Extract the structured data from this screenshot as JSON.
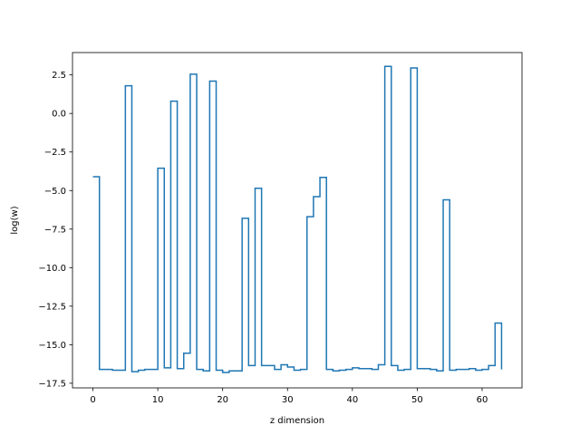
{
  "chart_data": {
    "type": "line",
    "drawstyle": "steps-post",
    "title": "",
    "xlabel": "z dimension",
    "ylabel": "log(w)",
    "xlim": [
      -3.15,
      66.15
    ],
    "ylim": [
      -17.8,
      3.95
    ],
    "xticks": [
      0,
      10,
      20,
      30,
      40,
      50,
      60
    ],
    "xtick_labels": [
      "0",
      "10",
      "20",
      "30",
      "40",
      "50",
      "60"
    ],
    "yticks": [
      -17.5,
      -15.0,
      -12.5,
      -10.0,
      -7.5,
      -5.0,
      -2.5,
      0.0,
      2.5
    ],
    "ytick_labels": [
      "−17.5",
      "−15.0",
      "−12.5",
      "−10.0",
      "−7.5",
      "−5.0",
      "−2.5",
      "0.0",
      "2.5"
    ],
    "grid": false,
    "line_color": "#1f77b4",
    "series": [
      {
        "x": [
          0,
          1,
          2,
          3,
          4,
          5,
          6,
          7,
          8,
          9,
          10,
          11,
          12,
          13,
          14,
          15,
          16,
          17,
          18,
          19,
          20,
          21,
          22,
          23,
          24,
          25,
          26,
          27,
          28,
          29,
          30,
          31,
          32,
          33,
          34,
          35,
          36,
          37,
          38,
          39,
          40,
          41,
          42,
          43,
          44,
          45,
          46,
          47,
          48,
          49,
          50,
          51,
          52,
          53,
          54,
          55,
          56,
          57,
          58,
          59,
          60,
          61,
          62,
          63
        ],
        "values": [
          -4.1,
          -16.6,
          -16.6,
          -16.65,
          -16.65,
          1.8,
          -16.75,
          -16.65,
          -16.6,
          -16.6,
          -3.55,
          -16.5,
          0.8,
          -16.55,
          -15.55,
          2.55,
          -16.6,
          -16.7,
          2.1,
          -16.65,
          -16.8,
          -16.7,
          -16.7,
          -6.8,
          -16.35,
          -4.85,
          -16.35,
          -16.35,
          -16.6,
          -16.3,
          -16.45,
          -16.65,
          -16.6,
          -6.7,
          -5.4,
          -4.15,
          -16.6,
          -16.7,
          -16.65,
          -16.6,
          -16.5,
          -16.55,
          -16.55,
          -16.6,
          -16.3,
          3.05,
          -16.35,
          -16.65,
          -16.6,
          2.95,
          -16.55,
          -16.55,
          -16.6,
          -16.7,
          -5.6,
          -16.65,
          -16.6,
          -16.6,
          -16.55,
          -16.65,
          -16.6,
          -16.35,
          -13.6,
          -16.6
        ]
      }
    ]
  }
}
